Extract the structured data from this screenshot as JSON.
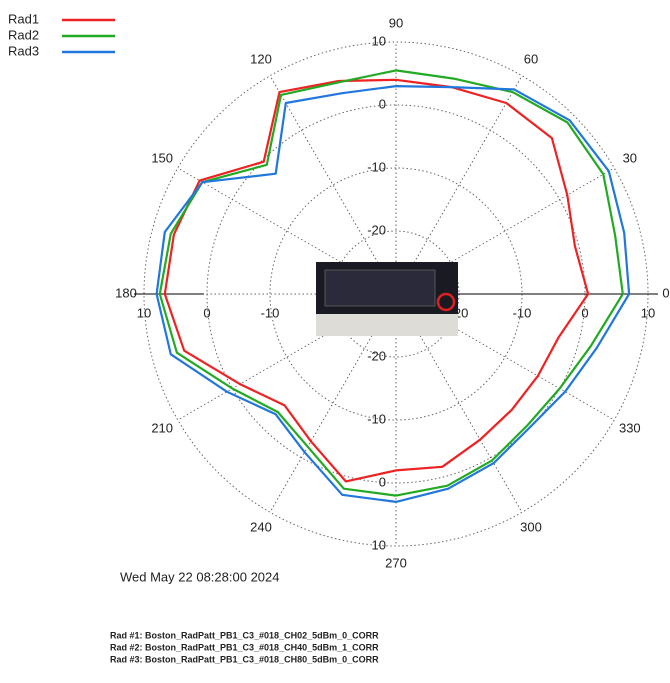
{
  "chart_data": {
    "type": "polar",
    "theta": [
      0,
      15,
      30,
      45,
      60,
      75,
      90,
      105,
      120,
      135,
      150,
      165,
      180,
      195,
      210,
      225,
      240,
      255,
      270,
      285,
      300,
      315,
      330,
      345
    ],
    "series": [
      {
        "name": "Rad1",
        "color": "#ee2222",
        "values": [
          0.5,
          -0.6,
          1.4,
          5,
          5,
          4,
          4,
          5,
          7,
          -0.3,
          6,
          6.5,
          6.7,
          4.8,
          -1.4,
          -5,
          -3,
          0.8,
          -2,
          -1.6,
          -3.3,
          -4,
          -4,
          -3.3
        ]
      },
      {
        "name": "Rad2",
        "color": "#22aa22",
        "values": [
          6,
          6,
          8,
          8.5,
          7,
          5.4,
          5.5,
          4.8,
          6.5,
          -1,
          5.5,
          7,
          7.5,
          6,
          0,
          -3.5,
          -2,
          2,
          2,
          1.5,
          0.5,
          -0.5,
          0,
          2
        ]
      },
      {
        "name": "Rad3",
        "color": "#2277dd",
        "values": [
          7,
          7.5,
          9,
          9,
          7.5,
          4,
          3,
          3,
          5,
          -3,
          5.5,
          8,
          8,
          7,
          1,
          -3,
          -1,
          3,
          3,
          2,
          1,
          0,
          1,
          3
        ]
      }
    ],
    "rlim": [
      -30,
      10
    ],
    "rticks": [
      -20,
      -10,
      0,
      10
    ],
    "thetaticks": [
      0,
      30,
      60,
      90,
      120,
      150,
      180,
      210,
      240,
      270,
      300,
      330
    ],
    "legend": "top-left",
    "grid": true,
    "date": "Wed May 22 08:28:00 2024",
    "footer": [
      "Rad #1: Boston_RadPatt_PB1_C3_#018_CH02_5dBm_0_CORR",
      "Rad #2: Boston_RadPatt_PB1_C3_#018_CH40_5dBm_1_CORR",
      "Rad #3: Boston_RadPatt_PB1_C3_#018_CH80_5dBm_0_CORR"
    ]
  }
}
